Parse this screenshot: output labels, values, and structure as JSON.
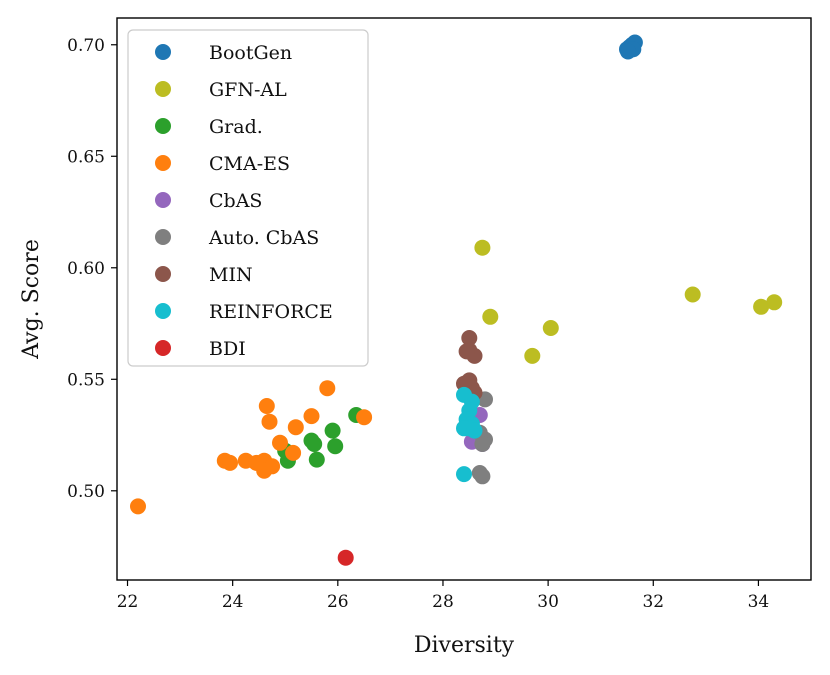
{
  "chart_data": {
    "type": "scatter",
    "title": "",
    "xlabel": "Diversity",
    "ylabel": "Avg. Score",
    "xlim": [
      21.8,
      35.0
    ],
    "ylim": [
      0.46,
      0.712
    ],
    "x_ticks": [
      22,
      24,
      26,
      28,
      30,
      32,
      34
    ],
    "y_ticks": [
      0.5,
      0.55,
      0.6,
      0.65,
      0.7
    ],
    "x_tick_labels": [
      "22",
      "24",
      "26",
      "28",
      "30",
      "32",
      "34"
    ],
    "y_tick_labels": [
      "0.50",
      "0.55",
      "0.60",
      "0.65",
      "0.70"
    ],
    "grid": false,
    "legend_position": "upper-left",
    "series": [
      {
        "name": "BootGen",
        "color": "#1f77b4",
        "points": [
          [
            31.5,
            0.698
          ],
          [
            31.55,
            0.699
          ],
          [
            31.6,
            0.7
          ],
          [
            31.65,
            0.701
          ],
          [
            31.62,
            0.698
          ],
          [
            31.52,
            0.697
          ]
        ]
      },
      {
        "name": "GFN-AL",
        "color": "#bcbd22",
        "points": [
          [
            28.75,
            0.609
          ],
          [
            32.75,
            0.588
          ],
          [
            34.05,
            0.5825
          ],
          [
            34.3,
            0.5845
          ],
          [
            28.9,
            0.578
          ],
          [
            30.05,
            0.573
          ],
          [
            29.7,
            0.5605
          ]
        ]
      },
      {
        "name": "Grad.",
        "color": "#2ca02c",
        "points": [
          [
            26.35,
            0.534
          ],
          [
            25.9,
            0.527
          ],
          [
            25.5,
            0.5225
          ],
          [
            25.55,
            0.521
          ],
          [
            25.95,
            0.52
          ],
          [
            25.6,
            0.514
          ],
          [
            25.05,
            0.5135
          ],
          [
            25.0,
            0.518
          ]
        ]
      },
      {
        "name": "CMA-ES",
        "color": "#ff7f0e",
        "points": [
          [
            22.2,
            0.493
          ],
          [
            25.8,
            0.546
          ],
          [
            24.65,
            0.538
          ],
          [
            25.5,
            0.5335
          ],
          [
            26.5,
            0.533
          ],
          [
            24.7,
            0.531
          ],
          [
            25.2,
            0.5285
          ],
          [
            24.9,
            0.5215
          ],
          [
            25.15,
            0.517
          ],
          [
            23.85,
            0.5135
          ],
          [
            24.25,
            0.5135
          ],
          [
            24.45,
            0.5125
          ],
          [
            23.95,
            0.5125
          ],
          [
            24.6,
            0.5135
          ],
          [
            24.75,
            0.511
          ],
          [
            24.6,
            0.509
          ]
        ]
      },
      {
        "name": "CbAS",
        "color": "#9467bd",
        "points": [
          [
            28.7,
            0.534
          ],
          [
            28.55,
            0.522
          ],
          [
            28.75,
            0.521
          ],
          [
            28.6,
            0.526
          ]
        ]
      },
      {
        "name": "Auto. CbAS",
        "color": "#7f7f7f",
        "points": [
          [
            28.8,
            0.541
          ],
          [
            28.7,
            0.508
          ],
          [
            28.75,
            0.5065
          ],
          [
            28.8,
            0.523
          ],
          [
            28.7,
            0.526
          ],
          [
            28.75,
            0.521
          ]
        ]
      },
      {
        "name": "MIN",
        "color": "#8c564b",
        "points": [
          [
            28.5,
            0.5685
          ],
          [
            28.5,
            0.563
          ],
          [
            28.6,
            0.5605
          ],
          [
            28.45,
            0.5625
          ],
          [
            28.5,
            0.5495
          ],
          [
            28.4,
            0.548
          ],
          [
            28.55,
            0.546
          ],
          [
            28.6,
            0.544
          ]
        ]
      },
      {
        "name": "REINFORCE",
        "color": "#17becf",
        "points": [
          [
            28.4,
            0.543
          ],
          [
            28.55,
            0.54
          ],
          [
            28.5,
            0.536
          ],
          [
            28.45,
            0.532
          ],
          [
            28.55,
            0.53
          ],
          [
            28.5,
            0.528
          ],
          [
            28.4,
            0.528
          ],
          [
            28.6,
            0.527
          ],
          [
            28.4,
            0.5075
          ]
        ]
      },
      {
        "name": "BDI",
        "color": "#d62728",
        "points": [
          [
            26.15,
            0.47
          ]
        ]
      }
    ]
  }
}
